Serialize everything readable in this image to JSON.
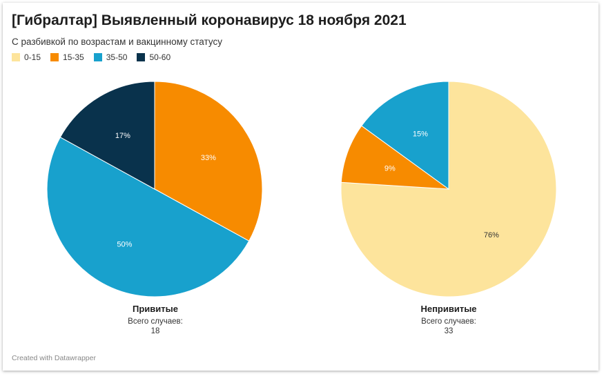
{
  "header": {
    "title": "[Гибралтар] Выявленный коронавирус 18 ноября 2021",
    "subtitle": "С разбивкой по возрастам и вакцинному статусу"
  },
  "colors": {
    "0-15": "#fde49c",
    "15-35": "#f78b00",
    "35-50": "#18a1cd",
    "50-60": "#09324c"
  },
  "chart_data": [
    {
      "type": "pie",
      "title": "Привитые",
      "caption_label": "Всего случаев:",
      "caption_value": "18",
      "slices": [
        {
          "label": "15-35",
          "value": 33,
          "text": "33%"
        },
        {
          "label": "35-50",
          "value": 50,
          "text": "50%"
        },
        {
          "label": "50-60",
          "value": 17,
          "text": "17%"
        }
      ],
      "legend": [
        "0-15",
        "15-35",
        "35-50",
        "50-60"
      ],
      "legend_position": "top-left"
    },
    {
      "type": "pie",
      "title": "Непривитые",
      "caption_label": "Всего случаев:",
      "caption_value": "33",
      "slices": [
        {
          "label": "0-15",
          "value": 76,
          "text": "76%"
        },
        {
          "label": "15-35",
          "value": 9,
          "text": "9%"
        },
        {
          "label": "35-50",
          "value": 15,
          "text": "15%"
        }
      ]
    }
  ],
  "footer": {
    "credit": "Created with Datawrapper"
  }
}
